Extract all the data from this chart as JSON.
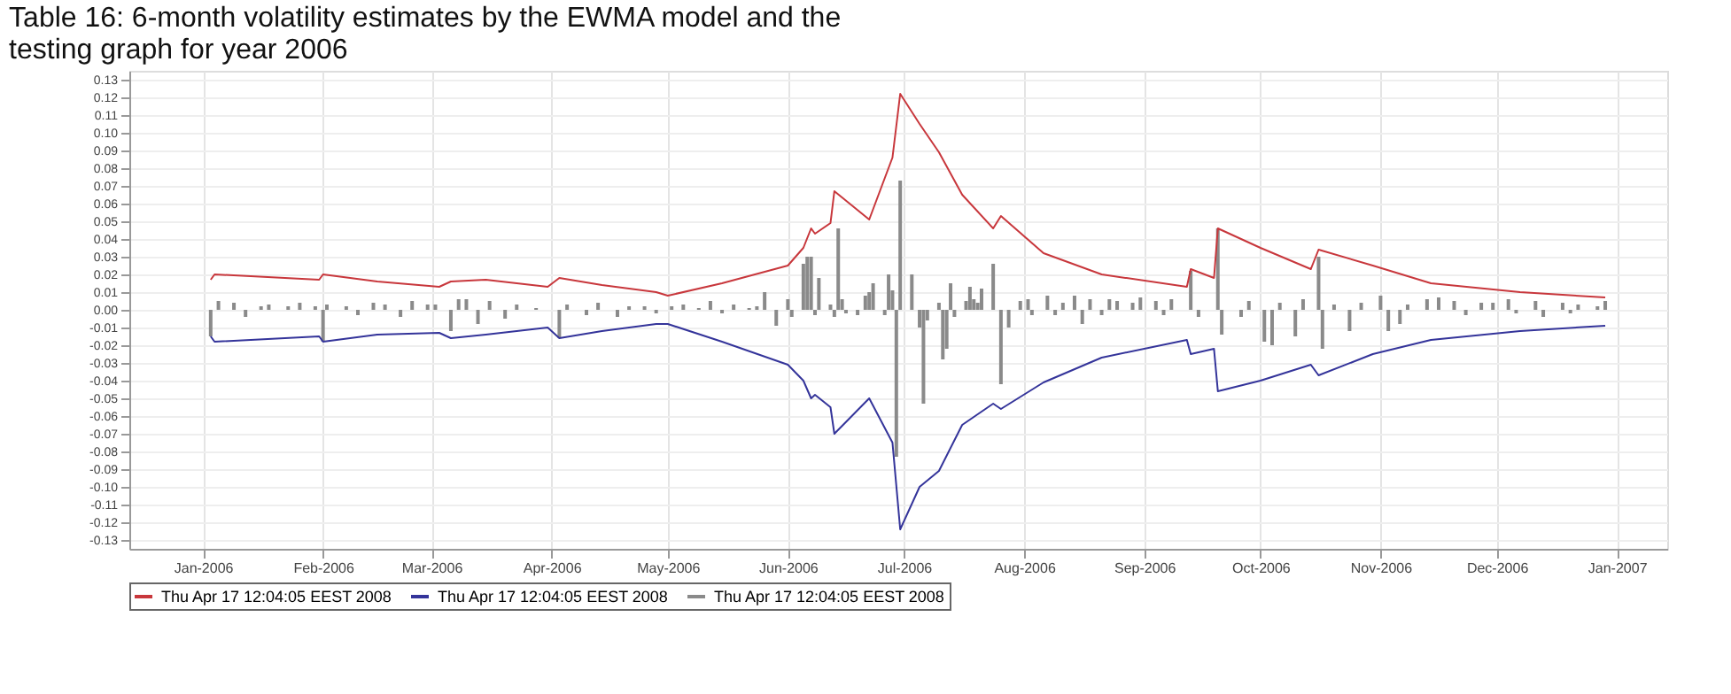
{
  "chart_data": {
    "type": "line",
    "title": "Table 16: 6-month volatility estimates by the EWMA model and the testing graph for year 2006",
    "xlim": [
      "2005-12-13",
      "2007-01-14"
    ],
    "xticks": [
      {
        "value": "2006-01-01",
        "label": "Jan-2006"
      },
      {
        "value": "2006-02-01",
        "label": "Feb-2006"
      },
      {
        "value": "2006-03-01",
        "label": "Mar-2006"
      },
      {
        "value": "2006-04-01",
        "label": "Apr-2006"
      },
      {
        "value": "2006-05-01",
        "label": "May-2006"
      },
      {
        "value": "2006-06-01",
        "label": "Jun-2006"
      },
      {
        "value": "2006-07-01",
        "label": "Jul-2006"
      },
      {
        "value": "2006-08-01",
        "label": "Aug-2006"
      },
      {
        "value": "2006-09-01",
        "label": "Sep-2006"
      },
      {
        "value": "2006-10-01",
        "label": "Oct-2006"
      },
      {
        "value": "2006-11-01",
        "label": "Nov-2006"
      },
      {
        "value": "2006-12-01",
        "label": "Dec-2006"
      },
      {
        "value": "2007-01-01",
        "label": "Jan-2007"
      }
    ],
    "ylim": [
      -0.135,
      0.135
    ],
    "yticks": [
      {
        "value": 0.13,
        "label": "0.13"
      },
      {
        "value": 0.12,
        "label": "0.12"
      },
      {
        "value": 0.11,
        "label": "0.11"
      },
      {
        "value": 0.1,
        "label": "0.10"
      },
      {
        "value": 0.09,
        "label": "0.09"
      },
      {
        "value": 0.08,
        "label": "0.08"
      },
      {
        "value": 0.07,
        "label": "0.07"
      },
      {
        "value": 0.06,
        "label": "0.06"
      },
      {
        "value": 0.05,
        "label": "0.05"
      },
      {
        "value": 0.04,
        "label": "0.04"
      },
      {
        "value": 0.03,
        "label": "0.03"
      },
      {
        "value": 0.02,
        "label": "0.02"
      },
      {
        "value": 0.01,
        "label": "0.01"
      },
      {
        "value": 0,
        "label": "0.00"
      },
      {
        "value": -0.01,
        "label": "-0.01"
      },
      {
        "value": -0.02,
        "label": "-0.02"
      },
      {
        "value": -0.03,
        "label": "-0.03"
      },
      {
        "value": -0.04,
        "label": "-0.04"
      },
      {
        "value": -0.05,
        "label": "-0.05"
      },
      {
        "value": -0.06,
        "label": "-0.06"
      },
      {
        "value": -0.07,
        "label": "-0.07"
      },
      {
        "value": -0.08,
        "label": "-0.08"
      },
      {
        "value": -0.09,
        "label": "-0.09"
      },
      {
        "value": -0.1,
        "label": "-0.10"
      },
      {
        "value": -0.11,
        "label": "-0.11"
      },
      {
        "value": -0.12,
        "label": "-0.12"
      },
      {
        "value": -0.13,
        "label": "-0.13"
      }
    ],
    "grid": true,
    "legend": "bottom",
    "series": [
      {
        "name": "Thu Apr 17 12:04:05 EEST 2008",
        "color": "#c8373c",
        "x": [
          "2006-01-03",
          "2006-01-04",
          "2006-01-31",
          "2006-02-01",
          "2006-02-15",
          "2006-03-03",
          "2006-03-06",
          "2006-03-15",
          "2006-03-31",
          "2006-04-03",
          "2006-04-14",
          "2006-04-28",
          "2006-05-01",
          "2006-05-15",
          "2006-06-01",
          "2006-06-05",
          "2006-06-07",
          "2006-06-08",
          "2006-06-12",
          "2006-06-13",
          "2006-06-22",
          "2006-06-28",
          "2006-06-30",
          "2006-07-05",
          "2006-07-10",
          "2006-07-16",
          "2006-07-24",
          "2006-07-26",
          "2006-08-06",
          "2006-08-21",
          "2006-09-12",
          "2006-09-13",
          "2006-09-19",
          "2006-09-20",
          "2006-10-01",
          "2006-10-14",
          "2006-10-16",
          "2006-10-30",
          "2006-11-14",
          "2006-12-07",
          "2006-12-29"
        ],
        "values": [
          0.017,
          0.02,
          0.017,
          0.02,
          0.016,
          0.013,
          0.016,
          0.017,
          0.013,
          0.018,
          0.014,
          0.01,
          0.008,
          0.015,
          0.025,
          0.035,
          0.046,
          0.043,
          0.049,
          0.067,
          0.051,
          0.086,
          0.122,
          0.105,
          0.089,
          0.065,
          0.046,
          0.053,
          0.032,
          0.02,
          0.013,
          0.023,
          0.018,
          0.046,
          0.035,
          0.023,
          0.034,
          0.025,
          0.015,
          0.01,
          0.007
        ]
      },
      {
        "name": "Thu Apr 17 12:04:05 EEST 2008",
        "color": "#34349a",
        "x": [
          "2006-01-03",
          "2006-01-04",
          "2006-01-31",
          "2006-02-01",
          "2006-02-15",
          "2006-03-03",
          "2006-03-06",
          "2006-03-15",
          "2006-03-31",
          "2006-04-03",
          "2006-04-14",
          "2006-04-28",
          "2006-05-01",
          "2006-05-15",
          "2006-06-01",
          "2006-06-05",
          "2006-06-07",
          "2006-06-08",
          "2006-06-12",
          "2006-06-13",
          "2006-06-22",
          "2006-06-28",
          "2006-06-30",
          "2006-07-05",
          "2006-07-10",
          "2006-07-16",
          "2006-07-24",
          "2006-07-26",
          "2006-08-06",
          "2006-08-21",
          "2006-09-12",
          "2006-09-13",
          "2006-09-19",
          "2006-09-20",
          "2006-10-01",
          "2006-10-14",
          "2006-10-16",
          "2006-10-30",
          "2006-11-14",
          "2006-12-07",
          "2006-12-29"
        ],
        "values": [
          -0.015,
          -0.018,
          -0.015,
          -0.018,
          -0.014,
          -0.013,
          -0.016,
          -0.014,
          -0.01,
          -0.016,
          -0.012,
          -0.008,
          -0.008,
          -0.018,
          -0.031,
          -0.04,
          -0.05,
          -0.048,
          -0.055,
          -0.07,
          -0.05,
          -0.075,
          -0.124,
          -0.1,
          -0.091,
          -0.065,
          -0.053,
          -0.056,
          -0.041,
          -0.027,
          -0.017,
          -0.025,
          -0.022,
          -0.046,
          -0.04,
          -0.031,
          -0.037,
          -0.025,
          -0.017,
          -0.012,
          -0.009
        ]
      },
      {
        "name": "Thu Apr 17 12:04:05 EEST 2008",
        "type": "bar",
        "color": "#8a8a8a",
        "x": [
          "2006-01-03",
          "2006-01-05",
          "2006-01-09",
          "2006-01-12",
          "2006-01-16",
          "2006-01-18",
          "2006-01-23",
          "2006-01-26",
          "2006-01-30",
          "2006-02-01",
          "2006-02-02",
          "2006-02-07",
          "2006-02-10",
          "2006-02-14",
          "2006-02-17",
          "2006-02-21",
          "2006-02-24",
          "2006-02-28",
          "2006-03-02",
          "2006-03-06",
          "2006-03-08",
          "2006-03-10",
          "2006-03-13",
          "2006-03-16",
          "2006-03-20",
          "2006-03-23",
          "2006-03-28",
          "2006-04-03",
          "2006-04-05",
          "2006-04-10",
          "2006-04-13",
          "2006-04-18",
          "2006-04-21",
          "2006-04-25",
          "2006-04-28",
          "2006-05-02",
          "2006-05-05",
          "2006-05-09",
          "2006-05-12",
          "2006-05-15",
          "2006-05-18",
          "2006-05-22",
          "2006-05-24",
          "2006-05-26",
          "2006-05-29",
          "2006-06-01",
          "2006-06-02",
          "2006-06-05",
          "2006-06-06",
          "2006-06-07",
          "2006-06-08",
          "2006-06-09",
          "2006-06-12",
          "2006-06-13",
          "2006-06-14",
          "2006-06-15",
          "2006-06-16",
          "2006-06-19",
          "2006-06-21",
          "2006-06-22",
          "2006-06-23",
          "2006-06-26",
          "2006-06-27",
          "2006-06-28",
          "2006-06-29",
          "2006-06-30",
          "2006-07-03",
          "2006-07-05",
          "2006-07-06",
          "2006-07-07",
          "2006-07-10",
          "2006-07-11",
          "2006-07-12",
          "2006-07-13",
          "2006-07-14",
          "2006-07-17",
          "2006-07-18",
          "2006-07-19",
          "2006-07-20",
          "2006-07-21",
          "2006-07-24",
          "2006-07-26",
          "2006-07-28",
          "2006-07-31",
          "2006-08-02",
          "2006-08-03",
          "2006-08-07",
          "2006-08-09",
          "2006-08-11",
          "2006-08-14",
          "2006-08-16",
          "2006-08-18",
          "2006-08-21",
          "2006-08-23",
          "2006-08-25",
          "2006-08-29",
          "2006-08-31",
          "2006-09-04",
          "2006-09-06",
          "2006-09-08",
          "2006-09-13",
          "2006-09-15",
          "2006-09-20",
          "2006-09-21",
          "2006-09-26",
          "2006-09-28",
          "2006-10-02",
          "2006-10-04",
          "2006-10-06",
          "2006-10-10",
          "2006-10-12",
          "2006-10-16",
          "2006-10-17",
          "2006-10-20",
          "2006-10-24",
          "2006-10-27",
          "2006-11-01",
          "2006-11-03",
          "2006-11-06",
          "2006-11-08",
          "2006-11-13",
          "2006-11-16",
          "2006-11-20",
          "2006-11-23",
          "2006-11-27",
          "2006-11-30",
          "2006-12-04",
          "2006-12-06",
          "2006-12-11",
          "2006-12-13",
          "2006-12-18",
          "2006-12-20",
          "2006-12-22",
          "2006-12-27",
          "2006-12-29"
        ],
        "values": [
          -0.015,
          0.005,
          0.004,
          -0.004,
          0.002,
          0.003,
          0.002,
          0.004,
          0.002,
          -0.018,
          0.003,
          0.002,
          -0.003,
          0.004,
          0.003,
          -0.004,
          0.005,
          0.003,
          0.003,
          -0.012,
          0.006,
          0.006,
          -0.008,
          0.005,
          -0.005,
          0.003,
          0.001,
          -0.016,
          0.003,
          -0.003,
          0.004,
          -0.004,
          0.002,
          0.002,
          -0.002,
          0.002,
          0.003,
          0.001,
          0.005,
          -0.002,
          0.003,
          0.001,
          0.002,
          0.01,
          -0.009,
          0.006,
          -0.004,
          0.026,
          0.03,
          0.03,
          -0.003,
          0.018,
          0.003,
          -0.004,
          0.046,
          0.006,
          -0.002,
          -0.003,
          0.008,
          0.01,
          0.015,
          -0.003,
          0.02,
          0.011,
          -0.083,
          0.073,
          0.02,
          -0.01,
          -0.053,
          -0.006,
          0.004,
          -0.028,
          -0.022,
          0.015,
          -0.004,
          0.005,
          0.013,
          0.006,
          0.004,
          0.012,
          0.026,
          -0.042,
          -0.01,
          0.005,
          0.006,
          -0.003,
          0.008,
          -0.003,
          0.004,
          0.008,
          -0.008,
          0.006,
          -0.003,
          0.006,
          0.005,
          0.004,
          0.007,
          0.005,
          -0.003,
          0.006,
          0.022,
          -0.004,
          0.046,
          -0.014,
          -0.004,
          0.005,
          -0.018,
          -0.02,
          0.004,
          -0.015,
          0.006,
          0.03,
          -0.022,
          0.003,
          -0.012,
          0.004,
          0.008,
          -0.012,
          -0.008,
          0.003,
          0.006,
          0.007,
          0.005,
          -0.003,
          0.004,
          0.004,
          0.006,
          -0.002,
          0.005,
          -0.004,
          0.004,
          -0.002,
          0.003,
          0.002,
          0.005
        ]
      }
    ]
  }
}
